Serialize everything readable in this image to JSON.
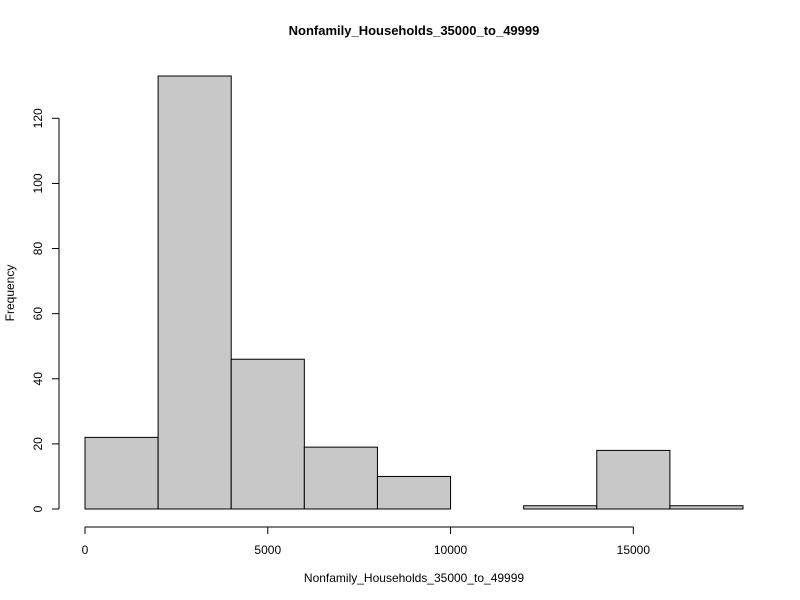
{
  "chart_data": {
    "type": "bar",
    "title": "Nonfamily_Households_35000_to_49999",
    "xlabel": "Nonfamily_Households_35000_to_49999",
    "ylabel": "Frequency",
    "bins": [
      {
        "start": 0,
        "end": 2000,
        "count": 22
      },
      {
        "start": 2000,
        "end": 4000,
        "count": 133
      },
      {
        "start": 4000,
        "end": 6000,
        "count": 46
      },
      {
        "start": 6000,
        "end": 8000,
        "count": 19
      },
      {
        "start": 8000,
        "end": 10000,
        "count": 10
      },
      {
        "start": 10000,
        "end": 12000,
        "count": 0
      },
      {
        "start": 12000,
        "end": 14000,
        "count": 1
      },
      {
        "start": 14000,
        "end": 16000,
        "count": 18
      },
      {
        "start": 16000,
        "end": 18000,
        "count": 1
      }
    ],
    "xlim": [
      0,
      18000
    ],
    "ylim": [
      0,
      133
    ],
    "xticks": [
      0,
      5000,
      10000,
      15000
    ],
    "xtick_labels": [
      "0",
      "5000",
      "10000",
      "15000"
    ],
    "yticks": [
      0,
      20,
      40,
      60,
      80,
      100,
      120
    ],
    "ytick_labels": [
      "0",
      "20",
      "40",
      "60",
      "80",
      "100",
      "120"
    ],
    "bar_color": "#c8c8c8",
    "grid": false
  }
}
